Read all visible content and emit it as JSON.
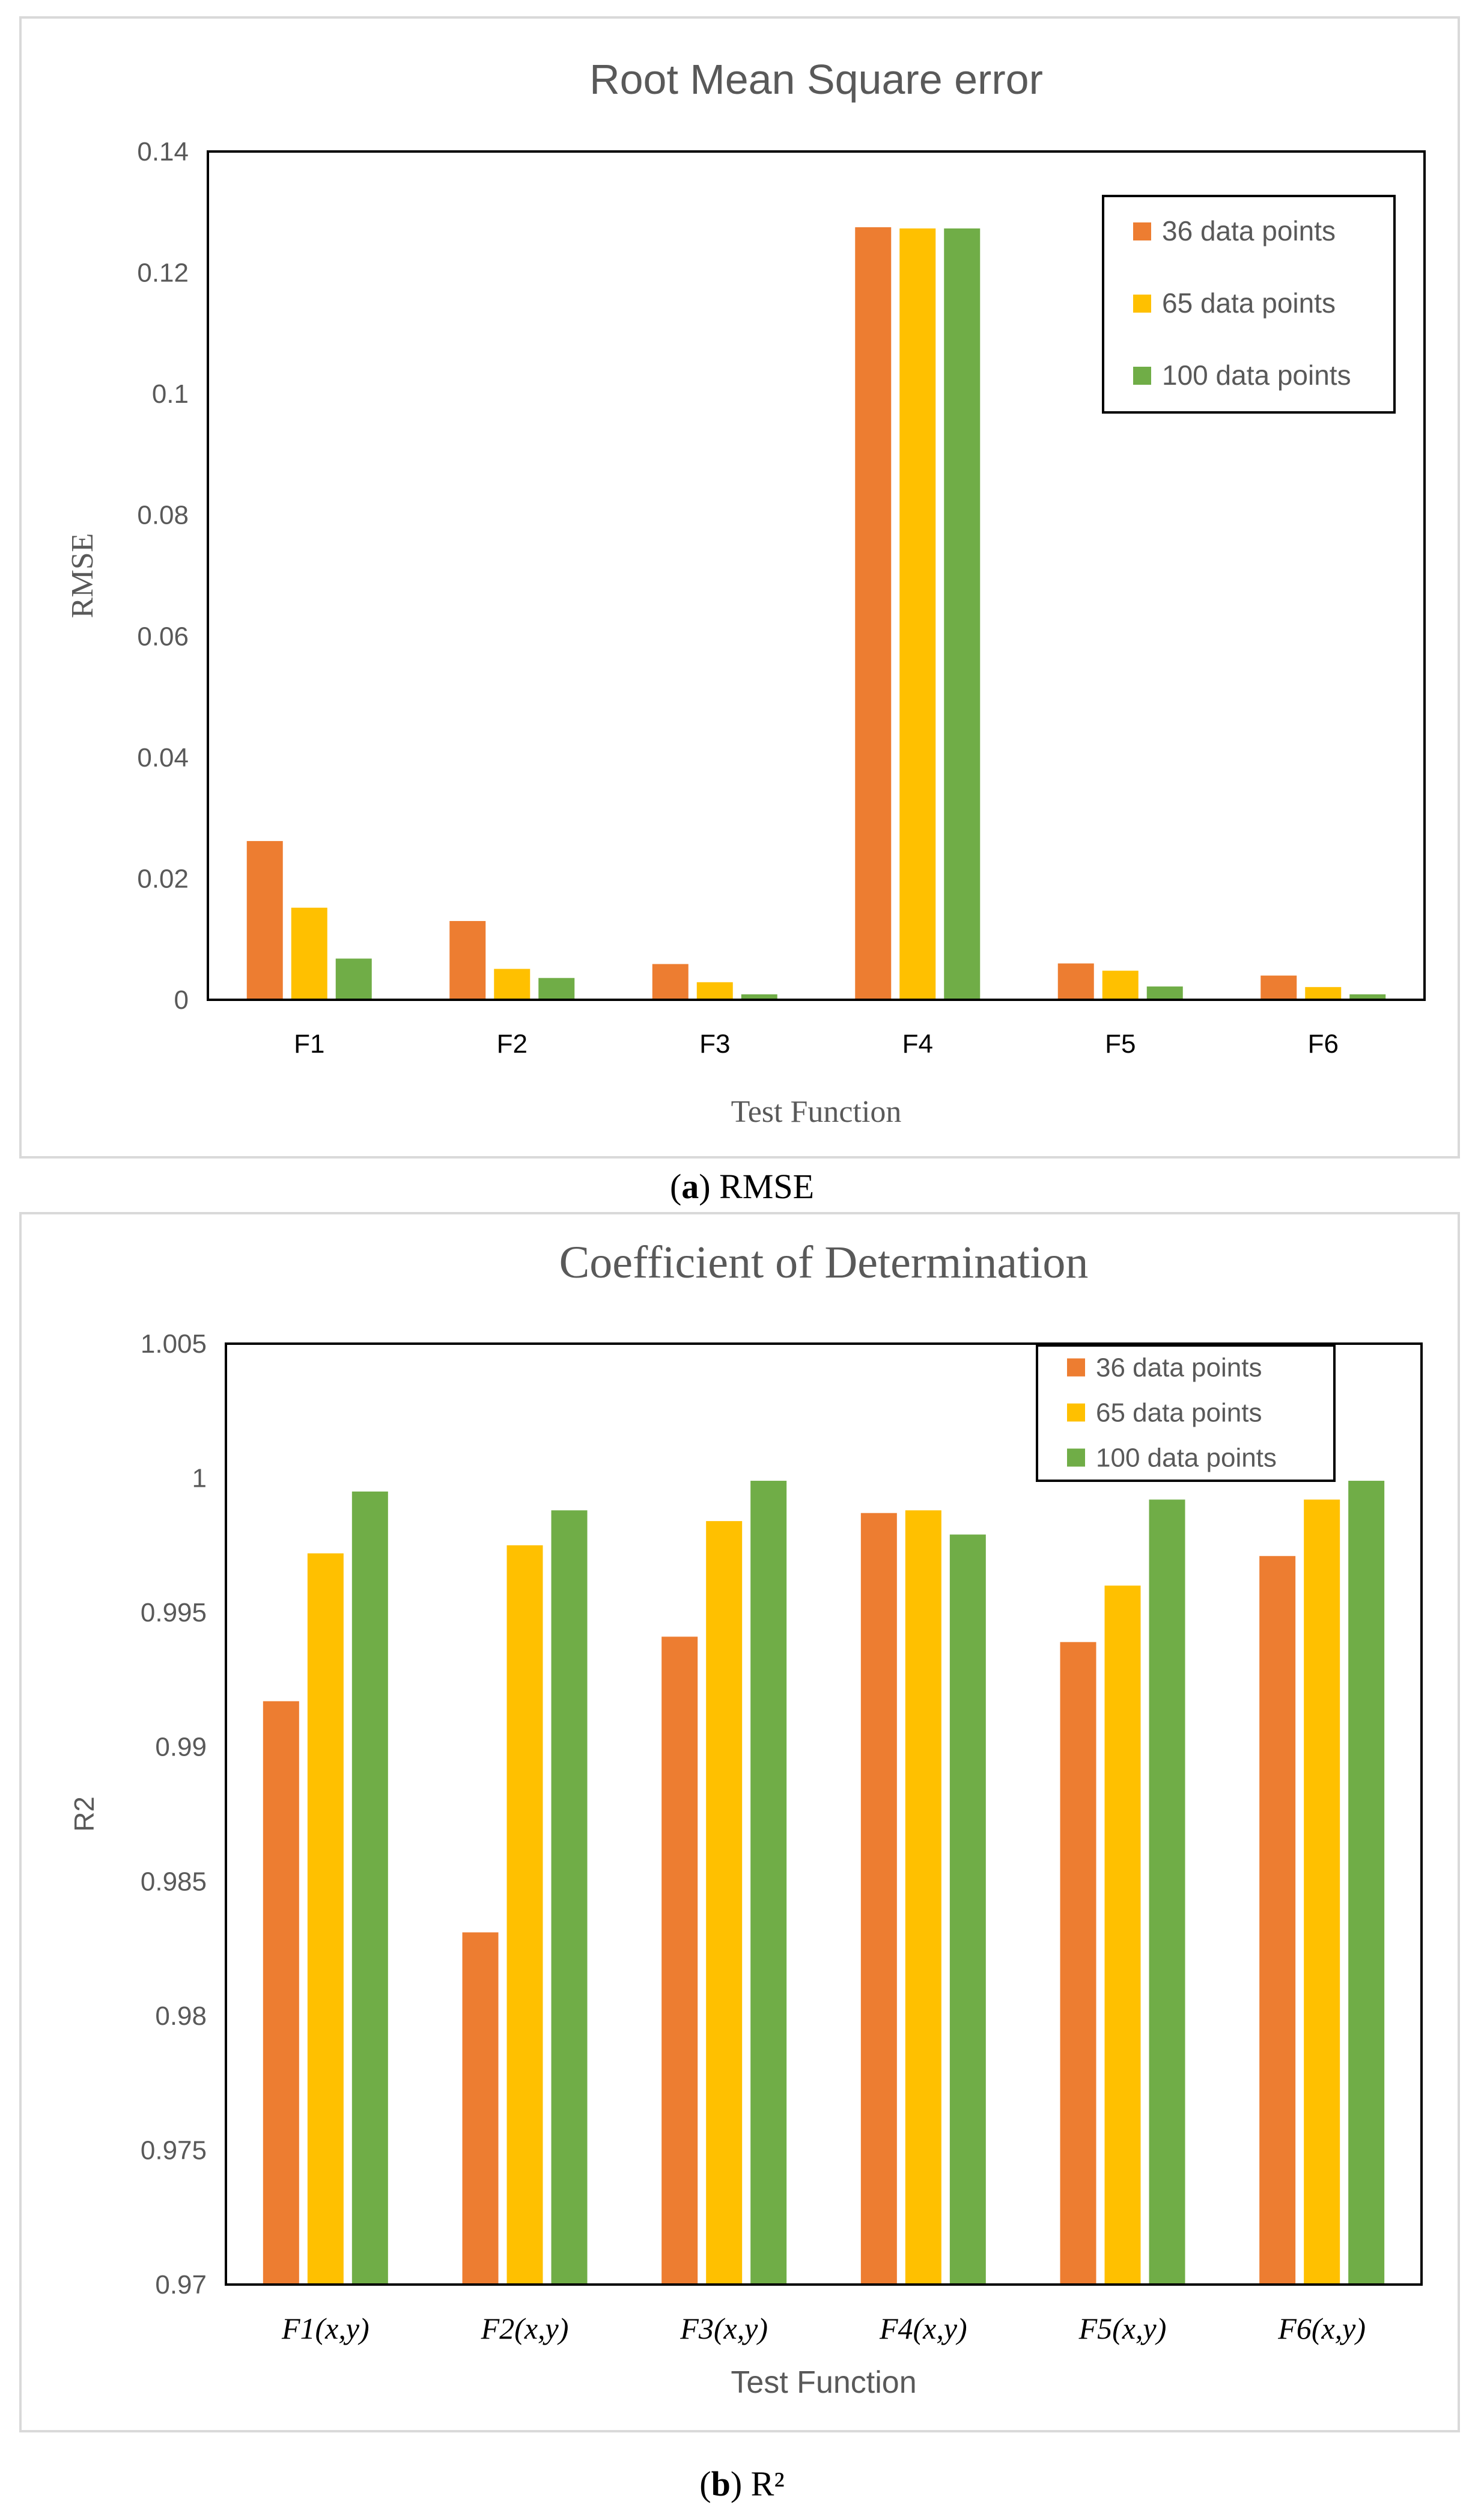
{
  "chart_data": [
    {
      "type": "bar",
      "title": "Root Mean Square error",
      "xlabel": "Test Function",
      "ylabel": "RMSE",
      "categories": [
        "F1",
        "F2",
        "F3",
        "F4",
        "F5",
        "F6"
      ],
      "ylim": [
        0,
        0.14
      ],
      "yticks": [
        "0",
        "0.02",
        "0.04",
        "0.06",
        "0.08",
        "0.1",
        "0.12",
        "0.14"
      ],
      "legend_position": "top-right",
      "grid": false,
      "series": [
        {
          "name": "36 data points",
          "color": "#ED7D31",
          "values": [
            0.0262,
            0.013,
            0.0059,
            0.1275,
            0.006,
            0.004
          ]
        },
        {
          "name": "65 data points",
          "color": "#FFC000",
          "values": [
            0.0152,
            0.0051,
            0.0029,
            0.1273,
            0.0048,
            0.0021
          ]
        },
        {
          "name": "100 data points",
          "color": "#70AD47",
          "values": [
            0.0068,
            0.0036,
            0.0009,
            0.1273,
            0.0022,
            0.0009
          ]
        }
      ]
    },
    {
      "type": "bar",
      "title": "Coefficient of Determination",
      "xlabel": "Test Function",
      "ylabel": "R2",
      "categories": [
        "F1(x,y)",
        "F2(x,y)",
        "F3(x,y)",
        "F4(x,y)",
        "F5(x,y)",
        "F6(x,y)"
      ],
      "ylim": [
        0.97,
        1.005
      ],
      "yticks": [
        "0.97",
        "0.975",
        "0.98",
        "0.985",
        "0.99",
        "0.995",
        "1",
        "1.005"
      ],
      "legend_position": "top-right",
      "grid": false,
      "series": [
        {
          "name": "36 data points",
          "color": "#ED7D31",
          "values": [
            0.9917,
            0.9831,
            0.9941,
            0.9987,
            0.9939,
            0.9971
          ]
        },
        {
          "name": "65 data points",
          "color": "#FFC000",
          "values": [
            0.9972,
            0.9975,
            0.9984,
            0.9988,
            0.996,
            0.9992
          ]
        },
        {
          "name": "100 data points",
          "color": "#70AD47",
          "values": [
            0.9995,
            0.9988,
            0.9999,
            0.9979,
            0.9992,
            0.9999
          ]
        }
      ]
    }
  ],
  "captions": {
    "a_letter": "a",
    "a_text": " RMSE",
    "b_letter": "b",
    "b_text": " R²"
  }
}
